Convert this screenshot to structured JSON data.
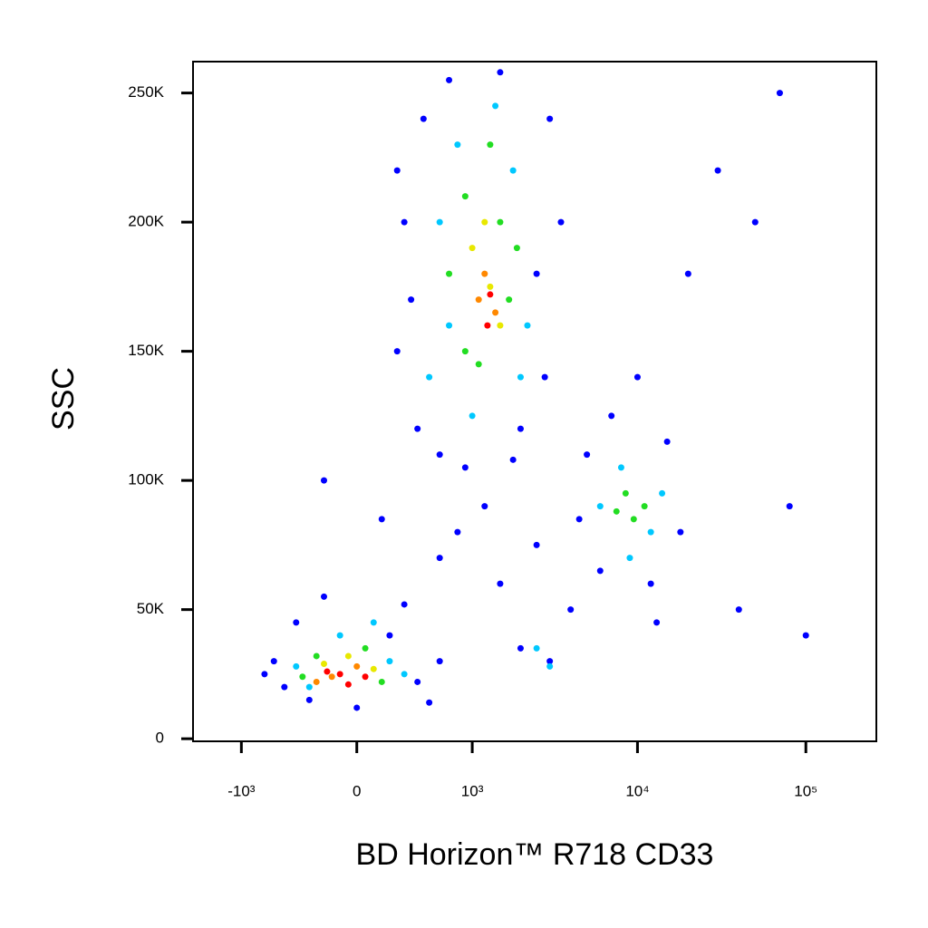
{
  "chart_data": {
    "type": "scatter",
    "xlabel": "BD Horizon™ R718  CD33",
    "ylabel": "SSC",
    "xscale": "biexponential",
    "xlim": [
      -2000,
      262144
    ],
    "ylim": [
      -1000,
      262144
    ],
    "xticks": [
      {
        "value": -1000,
        "label": "-10³"
      },
      0,
      {
        "value": 1000,
        "label": "10³"
      },
      {
        "value": 10000,
        "label": "10⁴"
      },
      {
        "value": 100000,
        "label": "10⁵"
      }
    ],
    "yticks": [
      0,
      {
        "value": 50000,
        "label": "50K"
      },
      {
        "value": 100000,
        "label": "100K"
      },
      {
        "value": 150000,
        "label": "150K"
      },
      {
        "value": 200000,
        "label": "200K"
      },
      {
        "value": 250000,
        "label": "250K"
      }
    ],
    "series": [
      {
        "color": "#0000ff",
        "x": [
          -600,
          -500,
          -400,
          -300,
          -200,
          0,
          200,
          400,
          600,
          -700,
          300,
          500,
          250,
          300,
          400,
          450,
          600,
          700,
          900,
          1500,
          2000,
          2500,
          3000,
          2800,
          3500,
          350,
          1800,
          250,
          4500,
          5000,
          6000,
          7000,
          12000,
          15000,
          18000,
          10000,
          13000,
          800,
          1500,
          2000,
          3000,
          4000,
          1200,
          600,
          2500,
          30000,
          50000,
          80000,
          40000,
          100000,
          70000,
          20000,
          -200,
          150
        ],
        "y": [
          30000,
          20000,
          45000,
          15000,
          55000,
          12000,
          40000,
          22000,
          30000,
          25000,
          52000,
          14000,
          150000,
          200000,
          120000,
          240000,
          110000,
          255000,
          105000,
          258000,
          120000,
          180000,
          240000,
          140000,
          200000,
          170000,
          108000,
          220000,
          85000,
          110000,
          65000,
          125000,
          60000,
          115000,
          80000,
          140000,
          45000,
          80000,
          60000,
          35000,
          30000,
          50000,
          90000,
          70000,
          75000,
          220000,
          200000,
          90000,
          50000,
          40000,
          250000,
          180000,
          100000,
          85000
        ]
      },
      {
        "color": "#00c8ff",
        "x": [
          -400,
          -100,
          200,
          -300,
          300,
          100,
          500,
          600,
          800,
          1000,
          1800,
          2200,
          2000,
          700,
          1400,
          6000,
          8000,
          12000,
          9000,
          14000,
          2500,
          3000
        ],
        "y": [
          28000,
          40000,
          30000,
          20000,
          25000,
          45000,
          140000,
          200000,
          230000,
          125000,
          220000,
          160000,
          140000,
          160000,
          245000,
          90000,
          105000,
          80000,
          70000,
          95000,
          35000,
          28000
        ]
      },
      {
        "color": "#22dd22",
        "x": [
          -250,
          50,
          150,
          -350,
          700,
          900,
          1100,
          1500,
          1700,
          1300,
          900,
          1900,
          7500,
          9500,
          8500,
          11000
        ],
        "y": [
          32000,
          35000,
          22000,
          24000,
          180000,
          210000,
          145000,
          200000,
          170000,
          230000,
          150000,
          190000,
          88000,
          85000,
          95000,
          90000
        ]
      },
      {
        "color": "#e8e800",
        "x": [
          -200,
          100,
          -50,
          1000,
          1300,
          1500,
          1200
        ],
        "y": [
          29000,
          27000,
          32000,
          190000,
          175000,
          160000,
          200000
        ]
      },
      {
        "color": "#ff8800",
        "x": [
          -150,
          0,
          -250,
          1200,
          1400,
          1100
        ],
        "y": [
          24000,
          28000,
          22000,
          180000,
          165000,
          170000
        ]
      },
      {
        "color": "#ff0000",
        "x": [
          -100,
          -50,
          -180,
          50,
          1300,
          1250
        ],
        "y": [
          25000,
          21000,
          26000,
          24000,
          172000,
          160000
        ]
      }
    ]
  }
}
